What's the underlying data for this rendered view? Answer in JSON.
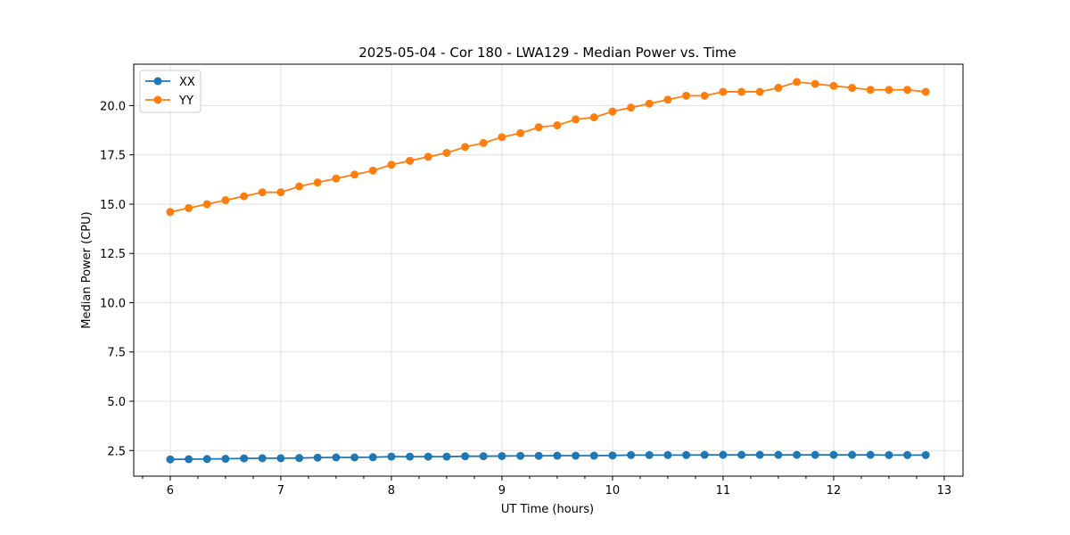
{
  "chart_data": {
    "type": "line",
    "title": "2025-05-04 - Cor 180 - LWA129 - Median Power vs. Time",
    "xlabel": "UT Time (hours)",
    "ylabel": "Median Power (CPU)",
    "xlim": [
      5.67,
      13.17
    ],
    "ylim": [
      1.2,
      22.1
    ],
    "xticks": [
      6,
      7,
      8,
      9,
      10,
      11,
      12,
      13
    ],
    "yticks": [
      2.5,
      5.0,
      7.5,
      10.0,
      12.5,
      15.0,
      17.5,
      20.0
    ],
    "ytick_labels": [
      "2.5",
      "5.0",
      "7.5",
      "10.0",
      "12.5",
      "15.0",
      "17.5",
      "20.0"
    ],
    "grid": true,
    "legend_position": "top-left",
    "x": [
      6.0,
      6.167,
      6.333,
      6.5,
      6.667,
      6.833,
      7.0,
      7.167,
      7.333,
      7.5,
      7.667,
      7.833,
      8.0,
      8.167,
      8.333,
      8.5,
      8.667,
      8.833,
      9.0,
      9.167,
      9.333,
      9.5,
      9.667,
      9.833,
      10.0,
      10.167,
      10.333,
      10.5,
      10.667,
      10.833,
      11.0,
      11.167,
      11.333,
      11.5,
      11.667,
      11.833,
      12.0,
      12.167,
      12.333,
      12.5,
      12.667,
      12.833
    ],
    "series": [
      {
        "name": "XX",
        "color": "#1f77b4",
        "values": [
          2.05,
          2.06,
          2.07,
          2.08,
          2.1,
          2.11,
          2.11,
          2.12,
          2.14,
          2.15,
          2.15,
          2.16,
          2.19,
          2.19,
          2.19,
          2.19,
          2.21,
          2.21,
          2.22,
          2.23,
          2.23,
          2.24,
          2.24,
          2.24,
          2.25,
          2.27,
          2.27,
          2.27,
          2.27,
          2.28,
          2.28,
          2.28,
          2.28,
          2.28,
          2.28,
          2.28,
          2.28,
          2.28,
          2.28,
          2.27,
          2.27,
          2.27
        ]
      },
      {
        "name": "YY",
        "color": "#ff7f0e",
        "values": [
          14.6,
          14.8,
          15.0,
          15.2,
          15.4,
          15.6,
          15.6,
          15.9,
          16.1,
          16.3,
          16.5,
          16.7,
          17.0,
          17.2,
          17.4,
          17.6,
          17.9,
          18.1,
          18.4,
          18.6,
          18.9,
          19.0,
          19.3,
          19.4,
          19.7,
          19.9,
          20.1,
          20.3,
          20.5,
          20.5,
          20.7,
          20.7,
          20.7,
          20.9,
          21.2,
          21.1,
          21.0,
          20.9,
          20.8,
          20.8,
          20.8,
          20.7
        ]
      }
    ]
  }
}
